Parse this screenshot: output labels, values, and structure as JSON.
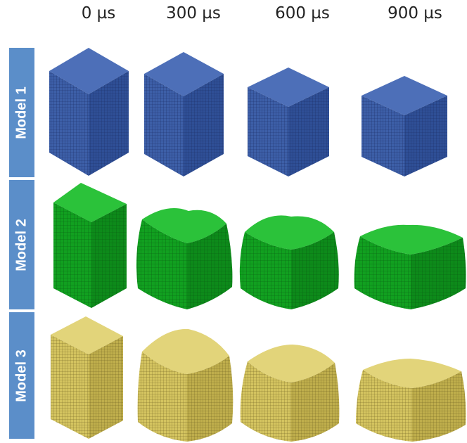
{
  "times": [
    "0 µs",
    "300 µs",
    "600 µs",
    "900 µs"
  ],
  "models": [
    {
      "label": "Model 1",
      "color": "#3d5fa8",
      "style": "rigid"
    },
    {
      "label": "Model 2",
      "color": "#11a020",
      "style": "crushed"
    },
    {
      "label": "Model 3",
      "color": "#d4c460",
      "style": "smooth"
    }
  ]
}
